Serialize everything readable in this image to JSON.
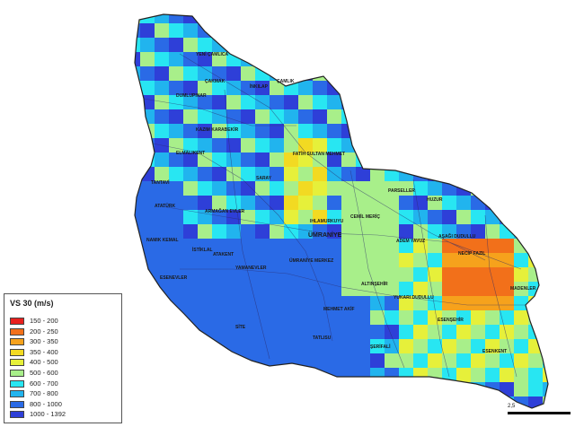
{
  "legend": {
    "title": "VS 30 (m/s)",
    "classes": [
      {
        "label": "150 - 200",
        "color": "#e8201e"
      },
      {
        "label": "200 - 250",
        "color": "#f2701a"
      },
      {
        "label": "300 - 350",
        "color": "#f6a21c"
      },
      {
        "label": "350 - 400",
        "color": "#f2da22"
      },
      {
        "label": "400 - 500",
        "color": "#e6f03a"
      },
      {
        "label": "500 - 600",
        "color": "#a8ef8a"
      },
      {
        "label": "600 - 700",
        "color": "#28e6f2"
      },
      {
        "label": "700 - 800",
        "color": "#21b4ee"
      },
      {
        "label": "800 - 1000",
        "color": "#2a6ae6"
      },
      {
        "label": "1000 - 1392",
        "color": "#2e3fd8"
      }
    ]
  },
  "scale_bar": {
    "label": "2,5"
  },
  "map": {
    "district_label": "ÜMRANİYE",
    "neighborhoods": [
      "YENİ ÇAMLICA",
      "ÇAKMAK",
      "ÇAMLIK",
      "IHLAMURKUYU",
      "ATAKENT",
      "İNKILAP",
      "DUMLUPINAR",
      "KAZIM KARABEKİR",
      "ELMALIKENT",
      "FATİH SULTAN MEHMET",
      "SARAY",
      "TANTAVİ",
      "ARMAĞAN EVLER",
      "PARSELLER",
      "HUZUR",
      "CEMİL MERİÇ",
      "AŞAĞI DUDULLU",
      "ADEM YAVUZ",
      "NECİP FAZIL",
      "NAMIK KEMAL",
      "İSTİKLAL",
      "ATATÜRK",
      "SİTE",
      "ESENEVLER",
      "YAMANEVLER",
      "ALTINŞEHİR",
      "YUKARI DUDULLU",
      "MADENLER",
      "MEHMET AKİF",
      "TATLISU",
      "ŞERİFALİ",
      "ESENŞEHİR",
      "ESENKENT",
      "ÜMRANİYE MERKEZ"
    ]
  }
}
